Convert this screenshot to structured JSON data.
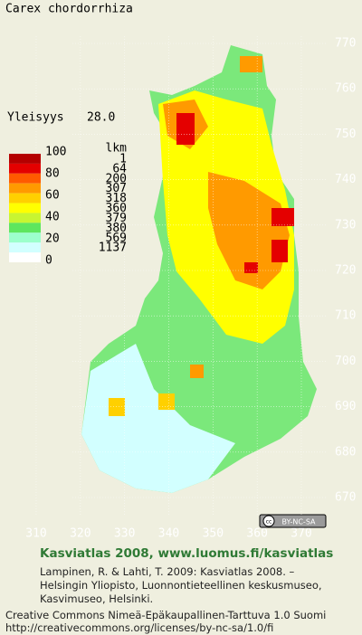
{
  "title": "Carex chordorrhiza",
  "frequency": {
    "label": "Yleisyys",
    "value": "28.0"
  },
  "legend": {
    "scale": [
      100,
      80,
      60,
      40,
      20,
      0
    ],
    "count_header": "lkm",
    "counts": [
      1,
      64,
      200,
      307,
      318,
      360,
      379,
      380,
      569,
      1137
    ],
    "colors": [
      "#b40000",
      "#e40000",
      "#ff5a00",
      "#ff9a00",
      "#ffd000",
      "#ffff00",
      "#c8f531",
      "#5ee65e",
      "#9cffcc",
      "#d2ffff",
      "#ffffff"
    ]
  },
  "yticks": [
    770,
    760,
    750,
    740,
    730,
    720,
    710,
    700,
    690,
    680,
    670
  ],
  "xticks": [
    310,
    320,
    330,
    340,
    350,
    360,
    370
  ],
  "badge": "BY-NC-SA",
  "footer": {
    "heading": "Kasviatlas 2008, www.luomus.fi/kasviatlas",
    "citation": [
      "Lampinen, R. & Lahti, T. 2009: Kasviatlas 2008. –",
      "Helsingin Yliopisto, Luonnontieteellinen keskusmuseo,",
      "Kasvimuseo, Helsinki."
    ],
    "license": [
      "Creative Commons Nimeä-Epäkaupallinen-Tarttuva 1.0 Suomi",
      "http://creativecommons.org/licenses/by-nc-sa/1.0/fi"
    ]
  }
}
